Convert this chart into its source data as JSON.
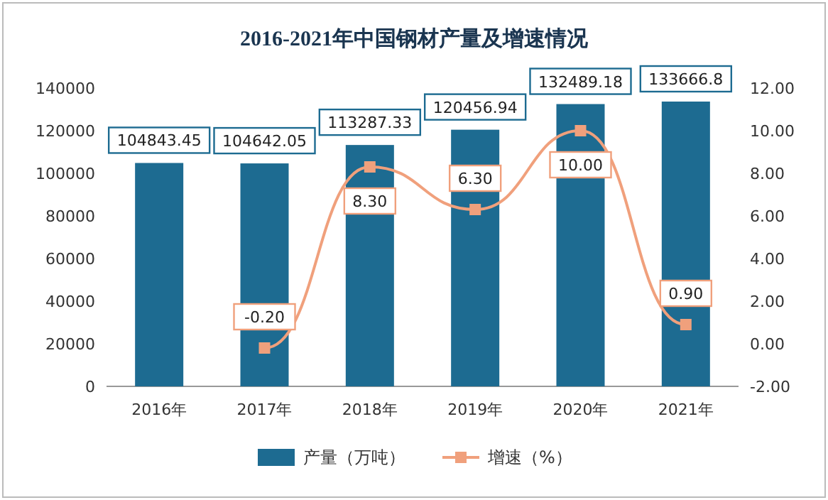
{
  "chart_data": {
    "type": "bar",
    "title": "2016-2021年中国钢材产量及增速情况",
    "categories": [
      "2016年",
      "2017年",
      "2018年",
      "2019年",
      "2020年",
      "2021年"
    ],
    "series": [
      {
        "name": "产量（万吨）",
        "color": "#1d6b91",
        "values": [
          104843.45,
          104642.05,
          113287.33,
          120456.94,
          132489.18,
          133666.8
        ],
        "value_labels": [
          "104843.45",
          "104642.05",
          "113287.33",
          "120456.94",
          "132489.18",
          "133666.8"
        ]
      },
      {
        "name": "增速（%）",
        "type": "line",
        "axis": "y2",
        "color": "#f0a07c",
        "marker": "square",
        "values": [
          null,
          -0.2,
          8.3,
          6.3,
          10.0,
          0.9
        ],
        "value_labels": [
          null,
          "-0.20",
          "8.30",
          "6.30",
          "10.00",
          "0.90"
        ]
      }
    ],
    "ylim": [
      0,
      140000
    ],
    "yticks": [
      0,
      20000,
      40000,
      60000,
      80000,
      100000,
      120000,
      140000
    ],
    "y2lim": [
      -2,
      12
    ],
    "y2ticks": [
      {
        "value": -2,
        "label": "-2.00"
      },
      {
        "value": 0,
        "label": "0.00"
      },
      {
        "value": 2,
        "label": "2.00"
      },
      {
        "value": 4,
        "label": "4.00"
      },
      {
        "value": 6,
        "label": "6.00"
      },
      {
        "value": 8,
        "label": "8.00"
      },
      {
        "value": 10,
        "label": "10.00"
      },
      {
        "value": 12,
        "label": "12.00"
      }
    ],
    "legend": "bottom",
    "grid": false
  }
}
